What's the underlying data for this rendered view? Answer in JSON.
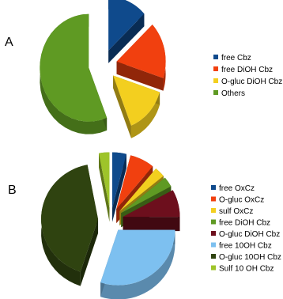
{
  "panels": [
    "A",
    "B"
  ],
  "chart_data": [
    {
      "type": "pie",
      "panel": "A",
      "title": "",
      "categories": [
        "free Cbz",
        "free DiOH Cbz",
        "O-gluc DiOH Cbz",
        "Others"
      ],
      "values": [
        0.13,
        0.17,
        0.14,
        0.56
      ],
      "colors": [
        "#0f4a8c",
        "#f1400f",
        "#f3cf1f",
        "#5f9a23"
      ],
      "exploded": true,
      "legend_position": "right"
    },
    {
      "type": "pie",
      "panel": "B",
      "title": "",
      "categories": [
        "free OxCz",
        "O-gluc OxCz",
        "sulf OxCz",
        "free DiOH Cbz",
        "O-gluc DiOH Cbz",
        "free 10OH Cbz",
        "O-gluc 10OH Cbz",
        "Sulf 10 OH Cbz"
      ],
      "values": [
        0.04,
        0.07,
        0.03,
        0.03,
        0.08,
        0.3,
        0.42,
        0.03
      ],
      "colors": [
        "#0f4a8c",
        "#f1400f",
        "#f3cf1f",
        "#5f9a23",
        "#6d0f1d",
        "#7dc0f0",
        "#2f4310",
        "#9ec42a"
      ],
      "exploded": true,
      "legend_position": "right"
    }
  ]
}
